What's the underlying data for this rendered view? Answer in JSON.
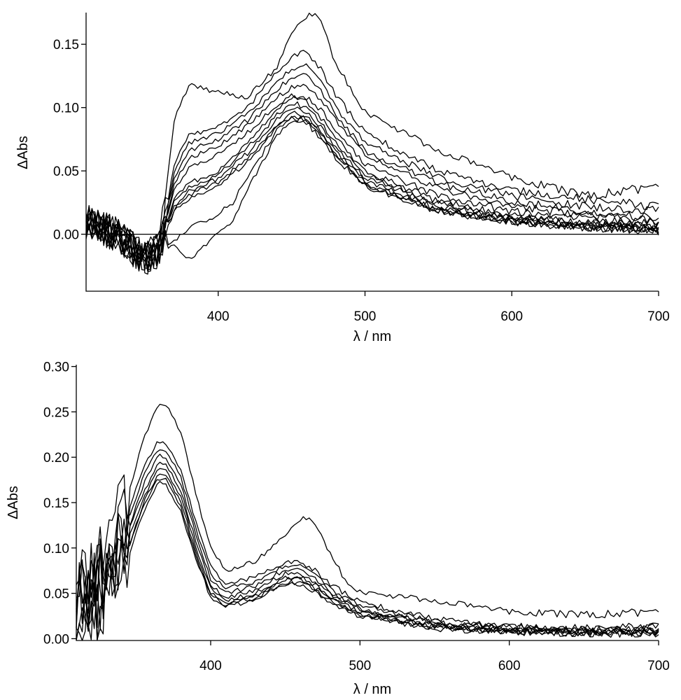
{
  "chart_data": [
    {
      "type": "line",
      "title": "",
      "xlabel": "λ / nm",
      "ylabel": "ΔAbs",
      "xlim": [
        310,
        700
      ],
      "ylim": [
        -0.045,
        0.175
      ],
      "x_ticks": [
        400,
        500,
        600,
        700
      ],
      "x_tick_labels": [
        "400",
        "500",
        "600",
        "700"
      ],
      "y_ticks": [
        0.0,
        0.05,
        0.1,
        0.15
      ],
      "y_tick_labels": [
        "0.00",
        "0.05",
        "0.10",
        "0.15"
      ],
      "zero_line": true,
      "grid": false,
      "legend": "none",
      "series": [
        {
          "x": [
            310,
            330,
            350,
            360,
            365,
            370,
            380,
            390,
            400,
            420,
            440,
            450,
            460,
            465,
            470,
            480,
            500,
            550,
            600,
            650,
            700
          ],
          "y": [
            0.01,
            0.0,
            -0.02,
            -0.01,
            0.04,
            0.09,
            0.118,
            0.115,
            0.112,
            0.108,
            0.132,
            0.16,
            0.172,
            0.174,
            0.168,
            0.135,
            0.097,
            0.066,
            0.045,
            0.03,
            0.038
          ]
        },
        {
          "x": [
            310,
            330,
            350,
            360,
            370,
            380,
            400,
            420,
            440,
            450,
            460,
            470,
            480,
            500,
            550,
            600,
            650,
            700
          ],
          "y": [
            0.01,
            0.0,
            -0.02,
            -0.01,
            0.055,
            0.078,
            0.085,
            0.1,
            0.128,
            0.14,
            0.145,
            0.13,
            0.11,
            0.08,
            0.05,
            0.035,
            0.028,
            0.022
          ]
        },
        {
          "x": [
            310,
            330,
            350,
            360,
            370,
            380,
            400,
            420,
            440,
            450,
            460,
            470,
            480,
            500,
            550,
            600,
            650,
            700
          ],
          "y": [
            0.01,
            0.0,
            -0.02,
            -0.01,
            0.05,
            0.072,
            0.08,
            0.095,
            0.12,
            0.13,
            0.133,
            0.12,
            0.1,
            0.072,
            0.045,
            0.03,
            0.022,
            0.018
          ]
        },
        {
          "x": [
            310,
            330,
            350,
            360,
            370,
            380,
            400,
            420,
            440,
            450,
            460,
            470,
            480,
            500,
            550,
            600,
            650,
            700
          ],
          "y": [
            0.01,
            0.0,
            -0.02,
            -0.01,
            0.045,
            0.066,
            0.075,
            0.09,
            0.114,
            0.124,
            0.126,
            0.113,
            0.095,
            0.066,
            0.04,
            0.026,
            0.018,
            0.012
          ]
        },
        {
          "x": [
            310,
            330,
            350,
            360,
            370,
            380,
            400,
            420,
            440,
            450,
            460,
            470,
            480,
            500,
            550,
            600,
            650,
            700
          ],
          "y": [
            0.01,
            0.0,
            -0.02,
            -0.01,
            0.04,
            0.06,
            0.07,
            0.086,
            0.108,
            0.116,
            0.118,
            0.106,
            0.09,
            0.062,
            0.036,
            0.022,
            0.015,
            0.01
          ]
        },
        {
          "x": [
            310,
            330,
            350,
            360,
            370,
            380,
            400,
            420,
            440,
            450,
            460,
            470,
            480,
            500,
            550,
            600,
            650,
            700
          ],
          "y": [
            0.01,
            0.0,
            -0.02,
            -0.01,
            0.035,
            0.052,
            0.063,
            0.08,
            0.102,
            0.11,
            0.108,
            0.098,
            0.082,
            0.055,
            0.03,
            0.018,
            0.012,
            0.008
          ]
        },
        {
          "x": [
            310,
            330,
            350,
            360,
            370,
            380,
            400,
            420,
            440,
            450,
            460,
            470,
            480,
            500,
            550,
            600,
            650,
            700
          ],
          "y": [
            0.01,
            0.0,
            -0.02,
            -0.01,
            0.028,
            0.04,
            0.05,
            0.072,
            0.098,
            0.108,
            0.104,
            0.092,
            0.076,
            0.05,
            0.026,
            0.015,
            0.01,
            0.006
          ]
        },
        {
          "x": [
            310,
            330,
            350,
            360,
            370,
            380,
            400,
            420,
            440,
            450,
            460,
            470,
            480,
            500,
            550,
            600,
            650,
            700
          ],
          "y": [
            0.01,
            0.0,
            -0.02,
            -0.01,
            0.025,
            0.037,
            0.047,
            0.068,
            0.094,
            0.104,
            0.1,
            0.088,
            0.072,
            0.047,
            0.024,
            0.013,
            0.008,
            0.005
          ]
        },
        {
          "x": [
            310,
            330,
            350,
            360,
            370,
            380,
            400,
            420,
            440,
            450,
            460,
            470,
            480,
            500,
            550,
            600,
            650,
            700
          ],
          "y": [
            0.01,
            0.0,
            -0.02,
            -0.01,
            0.022,
            0.034,
            0.044,
            0.064,
            0.09,
            0.1,
            0.097,
            0.085,
            0.069,
            0.045,
            0.022,
            0.012,
            0.007,
            0.004
          ]
        },
        {
          "x": [
            310,
            330,
            350,
            360,
            370,
            380,
            400,
            420,
            440,
            450,
            460,
            470,
            480,
            500,
            550,
            600,
            650,
            700
          ],
          "y": [
            0.01,
            0.0,
            -0.02,
            -0.01,
            0.02,
            0.031,
            0.041,
            0.06,
            0.087,
            0.096,
            0.094,
            0.082,
            0.066,
            0.042,
            0.02,
            0.011,
            0.006,
            0.004
          ]
        },
        {
          "x": [
            310,
            330,
            350,
            360,
            370,
            380,
            400,
            420,
            440,
            450,
            460,
            470,
            480,
            500,
            550,
            600,
            650,
            700
          ],
          "y": [
            0.01,
            0.0,
            -0.02,
            -0.01,
            0.018,
            0.028,
            0.038,
            0.057,
            0.084,
            0.093,
            0.091,
            0.079,
            0.064,
            0.04,
            0.019,
            0.01,
            0.005,
            0.003
          ]
        },
        {
          "x": [
            310,
            330,
            350,
            360,
            370,
            380,
            390,
            400,
            410,
            420,
            440,
            450,
            460,
            470,
            480,
            500,
            550,
            600,
            650,
            700
          ],
          "y": [
            0.01,
            0.0,
            -0.02,
            -0.015,
            -0.005,
            0.005,
            0.01,
            0.016,
            0.025,
            0.045,
            0.082,
            0.092,
            0.09,
            0.078,
            0.062,
            0.04,
            0.019,
            0.01,
            0.006,
            0.004
          ]
        },
        {
          "x": [
            310,
            330,
            350,
            360,
            365,
            370,
            380,
            390,
            400,
            410,
            420,
            440,
            450,
            460,
            470,
            480,
            500,
            550,
            600,
            650,
            700
          ],
          "y": [
            0.01,
            0.0,
            -0.02,
            -0.012,
            -0.01,
            -0.008,
            -0.02,
            -0.01,
            0.0,
            0.01,
            0.035,
            0.078,
            0.09,
            0.088,
            0.076,
            0.06,
            0.038,
            0.018,
            0.01,
            0.005,
            0.003
          ]
        }
      ]
    },
    {
      "type": "line",
      "title": "",
      "xlabel": "λ / nm",
      "ylabel": "ΔAbs",
      "xlim": [
        310,
        700
      ],
      "ylim": [
        -0.002,
        0.302
      ],
      "x_ticks": [
        400,
        500,
        600,
        700
      ],
      "x_tick_labels": [
        "400",
        "500",
        "600",
        "700"
      ],
      "y_ticks": [
        0.0,
        0.05,
        0.1,
        0.15,
        0.2,
        0.25,
        0.3
      ],
      "y_tick_labels": [
        "0.00",
        "0.05",
        "0.10",
        "0.15",
        "0.20",
        "0.25",
        "0.30"
      ],
      "zero_line": false,
      "grid": false,
      "legend": "none",
      "series": [
        {
          "x": [
            312,
            330,
            345,
            355,
            365,
            370,
            380,
            390,
            400,
            410,
            430,
            450,
            460,
            465,
            470,
            480,
            490,
            500,
            550,
            600,
            650,
            700
          ],
          "y": [
            0.06,
            0.1,
            0.16,
            0.22,
            0.258,
            0.258,
            0.228,
            0.16,
            0.1,
            0.075,
            0.085,
            0.115,
            0.132,
            0.133,
            0.125,
            0.095,
            0.065,
            0.052,
            0.042,
            0.03,
            0.026,
            0.03
          ]
        },
        {
          "x": [
            312,
            330,
            345,
            355,
            365,
            370,
            380,
            390,
            400,
            410,
            430,
            450,
            460,
            470,
            480,
            500,
            550,
            600,
            650,
            700
          ],
          "y": [
            0.05,
            0.09,
            0.14,
            0.19,
            0.218,
            0.215,
            0.185,
            0.13,
            0.08,
            0.06,
            0.068,
            0.084,
            0.085,
            0.075,
            0.06,
            0.04,
            0.022,
            0.014,
            0.012,
            0.014
          ]
        },
        {
          "x": [
            312,
            330,
            345,
            355,
            365,
            370,
            380,
            390,
            400,
            410,
            430,
            450,
            460,
            470,
            480,
            500,
            550,
            600,
            650,
            700
          ],
          "y": [
            0.04,
            0.08,
            0.13,
            0.18,
            0.21,
            0.208,
            0.178,
            0.122,
            0.072,
            0.055,
            0.063,
            0.08,
            0.08,
            0.07,
            0.055,
            0.036,
            0.019,
            0.012,
            0.01,
            0.012
          ]
        },
        {
          "x": [
            312,
            330,
            345,
            355,
            365,
            370,
            380,
            390,
            400,
            410,
            430,
            450,
            460,
            470,
            480,
            500,
            550,
            600,
            650,
            700
          ],
          "y": [
            0.04,
            0.07,
            0.12,
            0.17,
            0.202,
            0.2,
            0.17,
            0.115,
            0.066,
            0.05,
            0.058,
            0.076,
            0.076,
            0.066,
            0.052,
            0.033,
            0.017,
            0.011,
            0.009,
            0.01
          ]
        },
        {
          "x": [
            312,
            330,
            345,
            355,
            365,
            370,
            380,
            390,
            400,
            410,
            430,
            450,
            460,
            470,
            480,
            500,
            550,
            600,
            650,
            700
          ],
          "y": [
            0.03,
            0.07,
            0.12,
            0.16,
            0.195,
            0.193,
            0.163,
            0.108,
            0.06,
            0.045,
            0.054,
            0.072,
            0.072,
            0.062,
            0.049,
            0.031,
            0.015,
            0.01,
            0.008,
            0.009
          ]
        },
        {
          "x": [
            312,
            330,
            345,
            355,
            365,
            370,
            380,
            390,
            400,
            410,
            430,
            450,
            460,
            470,
            480,
            500,
            550,
            600,
            650,
            700
          ],
          "y": [
            0.03,
            0.06,
            0.11,
            0.155,
            0.188,
            0.186,
            0.156,
            0.102,
            0.055,
            0.042,
            0.05,
            0.068,
            0.068,
            0.059,
            0.046,
            0.029,
            0.014,
            0.009,
            0.007,
            0.008
          ]
        },
        {
          "x": [
            312,
            330,
            345,
            355,
            365,
            370,
            380,
            390,
            400,
            410,
            430,
            450,
            460,
            470,
            480,
            500,
            550,
            600,
            650,
            700
          ],
          "y": [
            0.03,
            0.06,
            0.1,
            0.15,
            0.182,
            0.18,
            0.15,
            0.097,
            0.051,
            0.039,
            0.047,
            0.065,
            0.065,
            0.056,
            0.044,
            0.027,
            0.013,
            0.008,
            0.006,
            0.007
          ]
        },
        {
          "x": [
            312,
            330,
            345,
            355,
            365,
            370,
            380,
            390,
            400,
            410,
            430,
            450,
            460,
            470,
            480,
            500,
            550,
            600,
            650,
            700
          ],
          "y": [
            0.02,
            0.05,
            0.1,
            0.145,
            0.177,
            0.175,
            0.145,
            0.093,
            0.048,
            0.037,
            0.045,
            0.062,
            0.062,
            0.054,
            0.042,
            0.026,
            0.012,
            0.008,
            0.006,
            0.006
          ]
        },
        {
          "x": [
            312,
            330,
            345,
            355,
            365,
            370,
            380,
            390,
            400,
            410,
            430,
            450,
            460,
            470,
            480,
            500,
            550,
            600,
            650,
            700
          ],
          "y": [
            0.02,
            0.05,
            0.09,
            0.14,
            0.172,
            0.17,
            0.14,
            0.089,
            0.045,
            0.035,
            0.043,
            0.06,
            0.06,
            0.052,
            0.04,
            0.025,
            0.011,
            0.007,
            0.005,
            0.006
          ]
        }
      ]
    }
  ]
}
